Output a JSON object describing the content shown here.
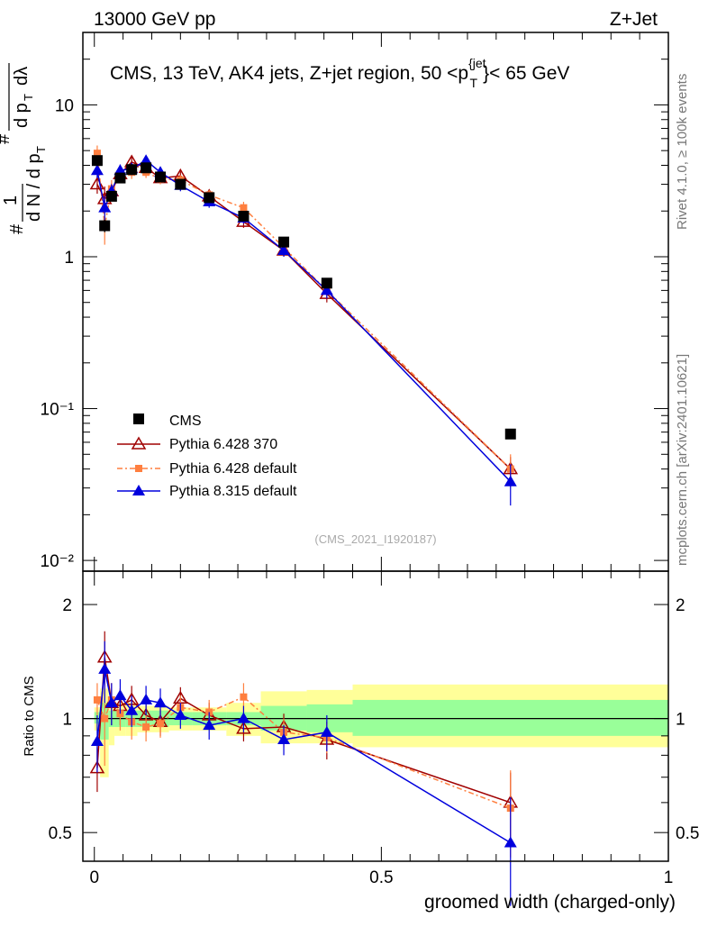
{
  "header": {
    "left": "13000 GeV pp",
    "right": "Z+Jet"
  },
  "side_text": {
    "rivet": "Rivet 4.1.0, ≥ 100k events",
    "mcplots": "mcplots.cern.ch [arXiv:2401.10621]"
  },
  "colors": {
    "cms": "#000000",
    "p6_370": "#a00000",
    "p6_def": "#ff7f3f",
    "p8": "#0000dd",
    "band_inner": "#99ff99",
    "band_outer": "#ffff99"
  },
  "chart_data": [
    {
      "type": "line",
      "title": "CMS, 13 TeV, AK4 jets, Z+jet region, 50 <p_T^{jet}< 65 GeV",
      "title_parts": {
        "main": "CMS, 13 TeV, AK4 jets, Z+jet region, 50 <p",
        "sup": "{jet",
        "sub": "T",
        "tail": "}< 65 GeV"
      },
      "ylabel": "1/dN/dpT dN/dpT dlambda (log)",
      "yscale": "log",
      "ylim": [
        0.0085,
        30
      ],
      "y_ticks": [
        {
          "v": 0.01,
          "label": "10⁻²"
        },
        {
          "v": 0.1,
          "label": "10⁻¹"
        },
        {
          "v": 1,
          "label": "1"
        },
        {
          "v": 10,
          "label": "10"
        }
      ],
      "watermark": "(CMS_2021_I1920187)",
      "legend_position": "bottom-left",
      "series": [
        {
          "name": "CMS",
          "key": "cms",
          "marker": "square",
          "x": [
            0.005,
            0.018,
            0.03,
            0.045,
            0.065,
            0.09,
            0.115,
            0.15,
            0.2,
            0.26,
            0.33,
            0.405,
            0.725
          ],
          "y": [
            4.3,
            1.6,
            2.5,
            3.3,
            3.75,
            3.85,
            3.35,
            3.0,
            2.45,
            1.85,
            1.25,
            0.67,
            0.068
          ],
          "err": [
            0.3,
            0.15,
            0.15,
            0.15,
            0.15,
            0.15,
            0.15,
            0.1,
            0.1,
            0.1,
            0.06,
            0.03,
            0.003
          ]
        },
        {
          "name": "Pythia 6.428 370",
          "key": "p6_370",
          "marker": "open-triangle",
          "x": [
            0.005,
            0.018,
            0.03,
            0.045,
            0.065,
            0.09,
            0.115,
            0.15,
            0.2,
            0.26,
            0.33,
            0.405,
            0.725
          ],
          "y": [
            3.0,
            2.4,
            2.7,
            3.5,
            4.2,
            3.85,
            3.3,
            3.4,
            2.5,
            1.7,
            1.1,
            0.57,
            0.04
          ],
          "err": [
            0.4,
            0.5,
            0.35,
            0.35,
            0.35,
            0.3,
            0.25,
            0.25,
            0.2,
            0.15,
            0.1,
            0.07,
            0.008
          ]
        },
        {
          "name": "Pythia 6.428 default",
          "key": "p6_def",
          "marker": "square-small",
          "x": [
            0.005,
            0.018,
            0.03,
            0.045,
            0.065,
            0.09,
            0.115,
            0.15,
            0.2,
            0.26,
            0.33,
            0.405,
            0.725
          ],
          "y": [
            4.8,
            1.6,
            2.8,
            3.4,
            3.6,
            3.6,
            3.25,
            3.2,
            2.55,
            2.1,
            1.15,
            0.6,
            0.04
          ],
          "err": [
            0.6,
            0.4,
            0.4,
            0.35,
            0.35,
            0.3,
            0.25,
            0.25,
            0.2,
            0.2,
            0.1,
            0.06,
            0.01
          ]
        },
        {
          "name": "Pythia 8.315 default",
          "key": "p8",
          "marker": "triangle",
          "x": [
            0.005,
            0.018,
            0.03,
            0.045,
            0.065,
            0.09,
            0.115,
            0.15,
            0.2,
            0.26,
            0.33,
            0.405,
            0.725
          ],
          "y": [
            3.7,
            2.1,
            2.7,
            3.7,
            3.8,
            4.3,
            3.6,
            2.95,
            2.3,
            1.8,
            1.1,
            0.6,
            0.033
          ],
          "err": [
            0.4,
            0.4,
            0.3,
            0.35,
            0.35,
            0.35,
            0.3,
            0.25,
            0.2,
            0.15,
            0.1,
            0.07,
            0.01
          ]
        }
      ]
    },
    {
      "type": "line",
      "ylabel": "Ratio to CMS",
      "xlabel": "groomed width (charged-only)",
      "xlim": [
        -0.02,
        1.0
      ],
      "ylim": [
        0.42,
        2.45
      ],
      "x_ticks": [
        {
          "v": 0,
          "label": "0"
        },
        {
          "v": 0.5,
          "label": "0.5"
        },
        {
          "v": 1,
          "label": "1"
        }
      ],
      "y_ticks": [
        {
          "v": 0.5,
          "label": "0.5"
        },
        {
          "v": 1,
          "label": "1"
        },
        {
          "v": 2,
          "label": "2"
        }
      ],
      "bands": {
        "bin_edges": [
          0.0,
          0.01,
          0.025,
          0.035,
          0.055,
          0.075,
          0.1,
          0.13,
          0.17,
          0.23,
          0.29,
          0.37,
          0.45,
          1.0
        ],
        "inner_lo": [
          0.97,
          0.88,
          0.95,
          0.95,
          0.95,
          0.95,
          0.95,
          0.96,
          0.96,
          0.96,
          0.93,
          0.92,
          0.9
        ],
        "inner_hi": [
          1.04,
          1.1,
          1.05,
          1.05,
          1.05,
          1.05,
          1.05,
          1.04,
          1.04,
          1.04,
          1.08,
          1.09,
          1.12
        ],
        "outer_lo": [
          0.93,
          0.7,
          0.85,
          0.9,
          0.9,
          0.92,
          0.92,
          0.93,
          0.93,
          0.9,
          0.86,
          0.86,
          0.84
        ],
        "outer_hi": [
          1.07,
          1.2,
          1.12,
          1.1,
          1.1,
          1.08,
          1.08,
          1.07,
          1.07,
          1.1,
          1.18,
          1.19,
          1.23
        ]
      },
      "series": [
        {
          "name": "Pythia 6.428 370",
          "key": "p6_370",
          "marker": "open-triangle",
          "x": [
            0.005,
            0.018,
            0.03,
            0.045,
            0.065,
            0.09,
            0.115,
            0.15,
            0.2,
            0.26,
            0.33,
            0.405,
            0.725
          ],
          "y": [
            0.74,
            1.45,
            1.1,
            1.08,
            1.12,
            1.02,
            0.98,
            1.13,
            1.02,
            0.94,
            0.95,
            0.88,
            0.6
          ],
          "err": [
            0.1,
            0.25,
            0.14,
            0.12,
            0.1,
            0.1,
            0.08,
            0.08,
            0.08,
            0.07,
            0.08,
            0.1,
            0.12
          ]
        },
        {
          "name": "Pythia 6.428 default",
          "key": "p6_def",
          "marker": "square-small",
          "x": [
            0.005,
            0.018,
            0.03,
            0.045,
            0.065,
            0.09,
            0.115,
            0.15,
            0.2,
            0.26,
            0.33,
            0.405,
            0.725
          ],
          "y": [
            1.12,
            1.0,
            1.12,
            1.03,
            0.98,
            0.95,
            0.97,
            1.07,
            1.04,
            1.14,
            0.92,
            0.89,
            0.58
          ],
          "err": [
            0.12,
            0.25,
            0.12,
            0.1,
            0.1,
            0.08,
            0.08,
            0.08,
            0.08,
            0.1,
            0.08,
            0.08,
            0.15
          ]
        },
        {
          "name": "Pythia 8.315 default",
          "key": "p8",
          "marker": "triangle",
          "x": [
            0.005,
            0.018,
            0.03,
            0.045,
            0.065,
            0.09,
            0.115,
            0.15,
            0.2,
            0.26,
            0.33,
            0.405,
            0.725
          ],
          "y": [
            0.87,
            1.35,
            1.1,
            1.15,
            1.05,
            1.12,
            1.1,
            1.02,
            0.96,
            1.0,
            0.88,
            0.92,
            0.47
          ],
          "err": [
            0.15,
            0.25,
            0.14,
            0.12,
            0.1,
            0.1,
            0.1,
            0.08,
            0.08,
            0.08,
            0.08,
            0.1,
            0.15
          ]
        }
      ]
    }
  ]
}
